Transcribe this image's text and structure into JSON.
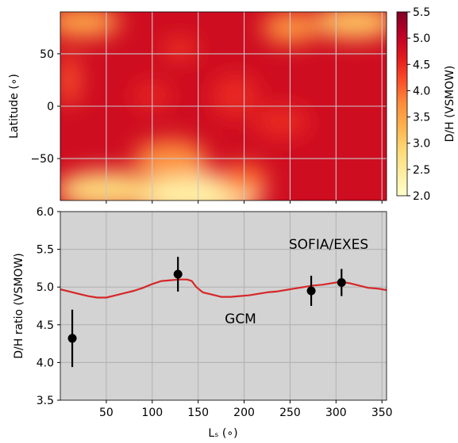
{
  "chart_data": [
    {
      "type": "heatmap",
      "title": "",
      "xlabel": "",
      "ylabel": "Latitude (∘)",
      "xlim": [
        0,
        355
      ],
      "ylim": [
        -90,
        90
      ],
      "yticks": [
        "50",
        "0",
        "−50"
      ],
      "grid": true,
      "colorbar": {
        "label": "D/H (VSMOW)",
        "range": [
          2.0,
          5.5
        ],
        "ticks": [
          "5.5",
          "5.0",
          "4.5",
          "4.0",
          "3.5",
          "3.0",
          "2.5",
          "2.0"
        ],
        "colormap": [
          "#ffffcc",
          "#ffeda0",
          "#fed976",
          "#feb24c",
          "#fd8d3c",
          "#fc4e2a",
          "#e31a1c",
          "#bd0026",
          "#800026"
        ]
      },
      "fields": [
        {
          "ls": 25,
          "lat": 80,
          "value": 3.4,
          "spread": [
            40,
            14
          ]
        },
        {
          "ls": 320,
          "lat": 80,
          "value": 3.1,
          "spread": [
            45,
            16
          ]
        },
        {
          "ls": 250,
          "lat": 75,
          "value": 3.6,
          "spread": [
            30,
            15
          ]
        },
        {
          "ls": 145,
          "lat": -85,
          "value": 2.4,
          "spread": [
            75,
            22
          ]
        },
        {
          "ls": 50,
          "lat": -80,
          "value": 2.8,
          "spread": [
            55,
            18
          ]
        },
        {
          "ls": 200,
          "lat": -70,
          "value": 3.9,
          "spread": [
            25,
            15
          ]
        },
        {
          "ls": 120,
          "lat": -50,
          "value": 3.7,
          "spread": [
            40,
            18
          ]
        },
        {
          "ls": 10,
          "lat": 25,
          "value": 4.1,
          "spread": [
            10,
            25
          ]
        },
        {
          "ls": 130,
          "lat": 55,
          "value": 4.4,
          "spread": [
            20,
            10
          ]
        },
        {
          "ls": 100,
          "lat": 10,
          "value": 4.5,
          "spread": [
            20,
            12
          ]
        },
        {
          "ls": 190,
          "lat": 10,
          "value": 4.5,
          "spread": [
            25,
            20
          ]
        },
        {
          "ls": 240,
          "lat": -15,
          "value": 4.5,
          "spread": [
            30,
            15
          ]
        }
      ]
    },
    {
      "type": "line",
      "title": "",
      "xlabel": "Lₛ (∘)",
      "ylabel": "D/H ratio (VSMOW)",
      "xlim": [
        0,
        355
      ],
      "ylim": [
        3.5,
        6.0
      ],
      "xticks": [
        50,
        100,
        150,
        200,
        250,
        300,
        350
      ],
      "yticks": [
        3.5,
        4.0,
        4.5,
        5.0,
        5.5,
        6.0
      ],
      "grid": true,
      "background": "#d3d3d3",
      "series": [
        {
          "name": "GCM",
          "color": "#d62728",
          "x": [
            0,
            10,
            20,
            30,
            40,
            50,
            60,
            70,
            80,
            90,
            100,
            110,
            120,
            130,
            138,
            143,
            148,
            155,
            165,
            175,
            185,
            195,
            205,
            215,
            225,
            235,
            245,
            255,
            265,
            275,
            285,
            295,
            305,
            315,
            325,
            335,
            345,
            355
          ],
          "y": [
            4.97,
            4.94,
            4.91,
            4.88,
            4.86,
            4.86,
            4.89,
            4.92,
            4.95,
            4.99,
            5.04,
            5.08,
            5.09,
            5.1,
            5.1,
            5.08,
            5.0,
            4.93,
            4.9,
            4.87,
            4.87,
            4.88,
            4.89,
            4.91,
            4.93,
            4.94,
            4.96,
            4.98,
            5.0,
            5.02,
            5.03,
            5.05,
            5.07,
            5.05,
            5.02,
            4.99,
            4.98,
            4.96
          ]
        },
        {
          "name": "SOFIA/EXES",
          "color": "#000000",
          "x": [
            13,
            128,
            273,
            306
          ],
          "y": [
            4.32,
            5.17,
            4.95,
            5.06
          ],
          "yerr": [
            0.38,
            0.23,
            0.2,
            0.18
          ]
        }
      ],
      "annotations": [
        {
          "text": "SOFIA/EXES",
          "color": "#000000"
        },
        {
          "text": "GCM",
          "color": "#d62728"
        }
      ]
    }
  ]
}
